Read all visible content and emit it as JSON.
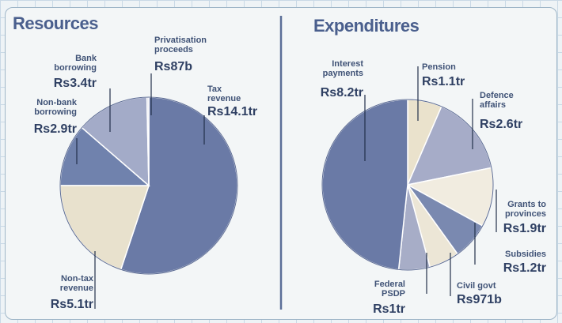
{
  "chart_data": [
    {
      "type": "pie",
      "title": "Resources",
      "slices": [
        {
          "name": "Tax revenue",
          "label": [
            "Tax",
            "revenue"
          ],
          "value_text": "Rs14.1tr",
          "value": 14.1,
          "color": "#6a7aa6"
        },
        {
          "name": "Non-tax revenue",
          "label": [
            "Non-tax",
            "revenue"
          ],
          "value_text": "Rs5.1tr",
          "value": 5.1,
          "color": "#e8e1cd"
        },
        {
          "name": "Non-bank borrowing",
          "label": [
            "Non-bank",
            "borrowing"
          ],
          "value_text": "Rs2.9tr",
          "value": 2.9,
          "color": "#7082ad"
        },
        {
          "name": "Bank borrowing",
          "label": [
            "Bank",
            "borrowing"
          ],
          "value_text": "Rs3.4tr",
          "value": 3.4,
          "color": "#a3abc8"
        },
        {
          "name": "Privatisation proceeds",
          "label": [
            "Privatisation",
            "proceeds"
          ],
          "value_text": "Rs87b",
          "value": 0.087,
          "color": "#d9dde8"
        }
      ]
    },
    {
      "type": "pie",
      "title": "Expenditures",
      "slices": [
        {
          "name": "Pension",
          "label": [
            "Pension"
          ],
          "value_text": "Rs1.1tr",
          "value": 1.1,
          "color": "#eae2cc"
        },
        {
          "name": "Defence affairs",
          "label": [
            "Defence",
            "affairs"
          ],
          "value_text": "Rs2.6tr",
          "value": 2.6,
          "color": "#a6acc8"
        },
        {
          "name": "Grants to provinces",
          "label": [
            "Grants to",
            "provinces"
          ],
          "value_text": "Rs1.9tr",
          "value": 1.9,
          "color": "#f1ece0"
        },
        {
          "name": "Subsidies",
          "label": [
            "Subsidies"
          ],
          "value_text": "Rs1.2tr",
          "value": 1.2,
          "color": "#7a89b0"
        },
        {
          "name": "Civil govt",
          "label": [
            "Civil govt"
          ],
          "value_text": "Rs971b",
          "value": 0.971,
          "color": "#ece6d6"
        },
        {
          "name": "Federal PSDP",
          "label": [
            "Federal",
            "PSDP"
          ],
          "value_text": "Rs1tr",
          "value": 1.0,
          "color": "#a7adc7"
        },
        {
          "name": "Interest payments",
          "label": [
            "Interest",
            "payments"
          ],
          "value_text": "Rs8.2tr",
          "value": 8.2,
          "color": "#6a7aa6"
        }
      ]
    }
  ]
}
